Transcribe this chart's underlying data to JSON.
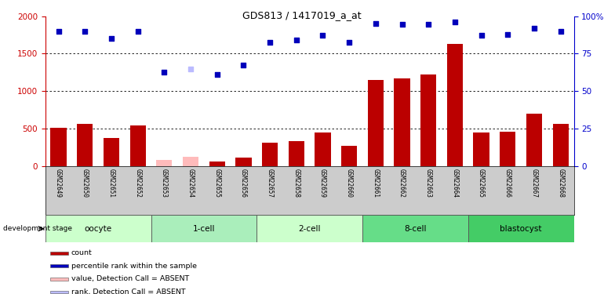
{
  "title": "GDS813 / 1417019_a_at",
  "samples": [
    "GSM22649",
    "GSM22650",
    "GSM22651",
    "GSM22652",
    "GSM22653",
    "GSM22654",
    "GSM22655",
    "GSM22656",
    "GSM22657",
    "GSM22658",
    "GSM22659",
    "GSM22660",
    "GSM22661",
    "GSM22662",
    "GSM22663",
    "GSM22664",
    "GSM22665",
    "GSM22666",
    "GSM22667",
    "GSM22668"
  ],
  "count_values": [
    510,
    560,
    370,
    540,
    80,
    120,
    60,
    110,
    310,
    330,
    450,
    270,
    1150,
    1175,
    1220,
    1630,
    450,
    460,
    700,
    560
  ],
  "count_absent": [
    false,
    false,
    false,
    false,
    true,
    true,
    false,
    false,
    false,
    false,
    false,
    false,
    false,
    false,
    false,
    false,
    false,
    false,
    false,
    false
  ],
  "rank_values": [
    1800,
    1800,
    1700,
    1800,
    1250,
    1300,
    1220,
    1350,
    1650,
    1680,
    1750,
    1650,
    1900,
    1890,
    1890,
    1920,
    1750,
    1760,
    1840,
    1800
  ],
  "rank_absent": [
    false,
    false,
    false,
    false,
    false,
    true,
    false,
    false,
    false,
    false,
    false,
    false,
    false,
    false,
    false,
    false,
    false,
    false,
    false,
    false
  ],
  "stages": [
    {
      "label": "oocyte",
      "start": 0,
      "end": 4,
      "color": "#ccffcc"
    },
    {
      "label": "1-cell",
      "start": 4,
      "end": 8,
      "color": "#aaeebb"
    },
    {
      "label": "2-cell",
      "start": 8,
      "end": 12,
      "color": "#ccffcc"
    },
    {
      "label": "8-cell",
      "start": 12,
      "end": 16,
      "color": "#66dd88"
    },
    {
      "label": "blastocyst",
      "start": 16,
      "end": 20,
      "color": "#44cc66"
    }
  ],
  "ylim_left": [
    0,
    2000
  ],
  "yticks_left": [
    0,
    500,
    1000,
    1500,
    2000
  ],
  "yticks_right_vals": [
    0,
    500,
    1000,
    1500,
    2000
  ],
  "yticks_right_labels": [
    "0",
    "25",
    "50",
    "75",
    "100%"
  ],
  "bar_color": "#bb0000",
  "bar_absent_color": "#ffbbbb",
  "rank_color": "#0000bb",
  "rank_absent_color": "#bbbbff",
  "xlabel_color": "#cc0000",
  "ylabel_right_color": "#0000cc",
  "label_bg_color": "#cccccc",
  "legend_items": [
    {
      "color": "#bb0000",
      "label": "count"
    },
    {
      "color": "#0000bb",
      "label": "percentile rank within the sample"
    },
    {
      "color": "#ffbbbb",
      "label": "value, Detection Call = ABSENT"
    },
    {
      "color": "#bbbbff",
      "label": "rank, Detection Call = ABSENT"
    }
  ]
}
